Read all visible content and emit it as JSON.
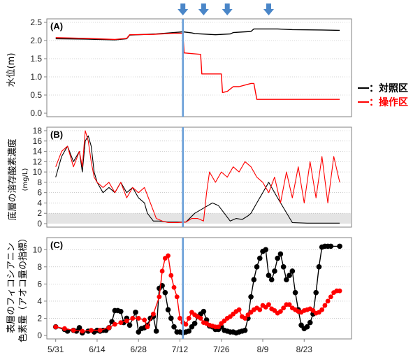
{
  "chart_data": [
    {
      "type": "line",
      "panel": "(A)",
      "ylabel": "水位",
      "ylabel_unit": "(m)",
      "ylim": [
        0,
        2.5
      ],
      "yticks": [
        "0.0",
        "0.5",
        "1.0",
        "1.5",
        "2.0",
        "2.5"
      ],
      "series": [
        {
          "name": "対照区",
          "color": "#000000",
          "x": [
            0,
            10,
            20,
            24,
            25,
            34,
            40,
            43,
            46,
            47,
            54,
            59,
            60,
            66,
            67,
            75,
            80,
            90,
            96
          ],
          "y": [
            2.05,
            2.04,
            2.02,
            2.05,
            2.15,
            2.18,
            2.22,
            2.24,
            2.21,
            2.19,
            2.16,
            2.18,
            2.22,
            2.25,
            2.32,
            2.32,
            2.3,
            2.29,
            2.28
          ]
        },
        {
          "name": "操作区",
          "color": "#ff0000",
          "x": [
            0,
            10,
            20,
            24,
            25,
            33,
            40,
            43,
            43.4,
            49,
            49.4,
            56,
            56.4,
            58,
            60,
            62,
            66,
            67,
            68,
            80,
            90,
            96
          ],
          "y": [
            2.08,
            2.06,
            2.03,
            2.06,
            2.16,
            2.17,
            2.2,
            2.2,
            1.66,
            1.62,
            1.08,
            1.08,
            0.57,
            0.6,
            0.73,
            0.73,
            0.82,
            0.82,
            0.38,
            0.38,
            0.38,
            0.38
          ]
        }
      ]
    },
    {
      "type": "line",
      "panel": "(B)",
      "ylabel": "底層の溶存酸素濃度",
      "ylabel_unit": "(mg/L)",
      "ylim": [
        0,
        18
      ],
      "yticks": [
        "0",
        "2",
        "4",
        "6",
        "8",
        "10",
        "12",
        "14",
        "16",
        "18"
      ],
      "shaded_range": [
        0,
        2
      ],
      "series": [
        {
          "name": "対照区",
          "color": "#000000",
          "x": [
            0,
            2,
            4,
            6,
            8,
            9,
            10,
            11,
            12,
            13,
            14,
            16,
            18,
            20,
            22,
            24,
            26,
            28,
            30,
            31,
            33,
            35,
            38,
            41,
            44,
            47,
            50,
            53,
            55,
            57,
            59,
            61,
            63,
            65,
            66,
            68,
            70,
            72,
            75,
            80,
            85,
            90,
            96
          ],
          "y": [
            9,
            13,
            15,
            12,
            14,
            10,
            16,
            17,
            15,
            10,
            8,
            6,
            7,
            6,
            8,
            6,
            7,
            5,
            4,
            2,
            0.5,
            0.5,
            0.3,
            0.3,
            0.3,
            2,
            3,
            4,
            3.5,
            2,
            0.5,
            1,
            0.8,
            1.5,
            2,
            4,
            6,
            8,
            5,
            0.2,
            0.1,
            0.1,
            0.1
          ]
        },
        {
          "name": "操作区",
          "color": "#ff0000",
          "x": [
            0,
            2,
            4,
            6,
            8,
            9,
            10,
            11,
            12,
            13,
            14,
            16,
            18,
            20,
            22,
            24,
            26,
            28,
            30,
            32,
            34,
            36,
            38,
            41,
            44,
            46,
            48,
            50,
            51,
            52,
            54,
            56,
            58,
            60,
            62,
            64,
            66,
            68,
            70,
            72,
            74,
            76,
            78,
            80,
            82,
            84,
            86,
            88,
            90,
            92,
            94,
            96
          ],
          "y": [
            11,
            14,
            15,
            11,
            14,
            11,
            18,
            16,
            12,
            9,
            8,
            7,
            8,
            6,
            8,
            5,
            7,
            6,
            7,
            4,
            1,
            0.5,
            0.2,
            0.2,
            0.3,
            1,
            1,
            0.5,
            6,
            10,
            8,
            10,
            9,
            11,
            10,
            12,
            11,
            9,
            8,
            6,
            9,
            4,
            10,
            5,
            11,
            4,
            12,
            5,
            13,
            4,
            13,
            8
          ]
        }
      ]
    },
    {
      "type": "line",
      "panel": "(C)",
      "ylabel": "表層のフィコシアニン",
      "ylabel2": "色素量（アオコ量の指標）",
      "ylim": [
        0,
        11
      ],
      "yticks": [
        "0",
        "2",
        "4",
        "6",
        "8",
        "10"
      ],
      "series": [
        {
          "name": "対照区",
          "color": "#000000",
          "x": [
            0,
            3,
            4,
            6,
            7,
            8,
            9,
            11,
            13,
            14,
            15,
            16,
            17,
            18,
            19,
            20,
            21,
            22,
            23,
            24,
            25,
            27,
            28,
            29,
            30,
            31,
            32,
            33,
            34,
            35,
            36,
            37,
            38,
            39,
            40,
            41,
            42,
            43,
            44,
            45,
            46,
            47,
            48,
            49,
            50,
            51,
            52,
            53,
            54,
            55,
            56,
            57,
            58,
            59,
            60,
            61,
            62,
            63,
            64,
            65,
            66,
            67,
            68,
            69,
            70,
            71,
            72,
            73,
            74,
            75,
            76,
            77,
            78,
            79,
            80,
            81,
            82,
            83,
            84,
            85,
            86,
            87,
            88,
            89,
            90,
            91,
            92,
            93,
            96
          ],
          "y": [
            1.0,
            0.7,
            0.5,
            0.6,
            0.5,
            0.9,
            0.3,
            0.5,
            0.4,
            0.6,
            0.5,
            0.6,
            0.6,
            0.9,
            1.6,
            2.9,
            2.9,
            2.8,
            1.5,
            2.0,
            1.2,
            2.7,
            0.4,
            0.8,
            0.9,
            1.2,
            2.0,
            2.2,
            0.5,
            5.5,
            5.8,
            5.0,
            3.0,
            2.0,
            1.0,
            0.4,
            0.4,
            0.3,
            0.4,
            0.5,
            1.0,
            1.4,
            2.2,
            2.5,
            2.8,
            1.8,
            1.1,
            1.0,
            0.7,
            0.7,
            1.0,
            0.6,
            0.5,
            0.4,
            0.4,
            0.3,
            0.4,
            0.5,
            0.6,
            2.0,
            4.5,
            6.5,
            8.0,
            9.0,
            9.8,
            10.0,
            7.0,
            6.5,
            7.5,
            9.0,
            9.5,
            8.0,
            6.5,
            7.0,
            7.5,
            5.0,
            3.0,
            1.2,
            0.8,
            1.0,
            1.5,
            2.5,
            5.0,
            8.0,
            10.3,
            10.4,
            10.4,
            10.4,
            10.4
          ]
        },
        {
          "name": "操作区",
          "color": "#ff0000",
          "x": [
            0,
            3,
            6,
            9,
            12,
            15,
            18,
            20,
            22,
            24,
            26,
            28,
            30,
            31,
            33,
            35,
            36,
            37,
            38,
            39,
            40,
            41,
            42,
            43,
            44,
            45,
            46,
            47,
            48,
            49,
            50,
            51,
            52,
            53,
            54,
            55,
            56,
            57,
            58,
            59,
            60,
            61,
            62,
            63,
            64,
            65,
            66,
            67,
            68,
            69,
            70,
            71,
            72,
            73,
            74,
            75,
            76,
            77,
            78,
            79,
            80,
            81,
            82,
            83,
            84,
            85,
            86,
            87,
            88,
            89,
            90,
            91,
            92,
            93,
            94,
            95,
            96
          ],
          "y": [
            1.0,
            0.8,
            0.6,
            0.5,
            0.6,
            0.6,
            0.9,
            1.3,
            1.5,
            1.7,
            2.0,
            2.0,
            1.8,
            1.0,
            2.5,
            4.5,
            7.5,
            9.0,
            9.3,
            7.0,
            5.6,
            4.5,
            2.0,
            1.5,
            1.3,
            2.0,
            2.7,
            2.4,
            2.2,
            2.0,
            1.5,
            1.4,
            1.2,
            1.1,
            1.0,
            1.0,
            1.4,
            1.7,
            2.0,
            2.2,
            2.5,
            2.8,
            3.0,
            2.2,
            2.0,
            2.4,
            2.7,
            3.0,
            3.2,
            3.0,
            3.5,
            3.3,
            3.6,
            3.1,
            2.9,
            2.6,
            2.8,
            3.2,
            3.6,
            3.6,
            3.2,
            3.0,
            2.8,
            2.7,
            2.9,
            3.0,
            3.1,
            2.9,
            2.6,
            2.7,
            3.0,
            3.5,
            4.0,
            4.5,
            5.0,
            5.2,
            5.2
          ]
        }
      ]
    }
  ],
  "x_axis": {
    "range": [
      -3,
      100
    ],
    "ticks": [
      {
        "value": 0,
        "label": "5/31"
      },
      {
        "value": 14,
        "label": "6/14"
      },
      {
        "value": 28,
        "label": "6/28"
      },
      {
        "value": 42,
        "label": "7/12"
      },
      {
        "value": 56,
        "label": "7/26"
      },
      {
        "value": 70,
        "label": "8/9"
      },
      {
        "value": 84,
        "label": "8/23"
      }
    ]
  },
  "event_line_x": 43,
  "arrow_x": [
    43,
    50,
    58,
    72
  ],
  "legend": [
    {
      "label": "：対照区",
      "color": "#000000"
    },
    {
      "label": "：操作区",
      "color": "#ff0000"
    }
  ],
  "colors": {
    "event_line": "#6a9fd8",
    "arrow": "#4a86c8",
    "shade": "#e4e4e4",
    "grid": "#b0b0b0"
  }
}
